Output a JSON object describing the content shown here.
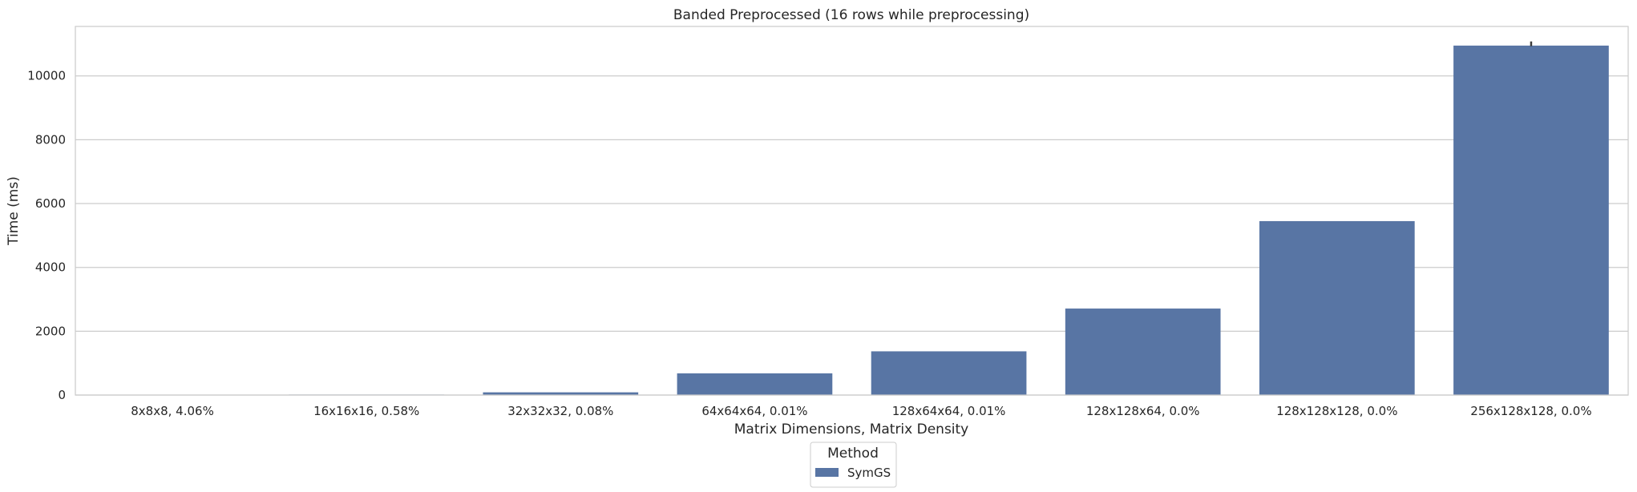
{
  "chart_data": {
    "type": "bar",
    "title": "Banded Preprocessed (16 rows while preprocessing)",
    "xlabel": "Matrix Dimensions, Matrix Density",
    "ylabel": "Time (ms)",
    "categories": [
      "8x8x8, 4.06%",
      "16x16x16, 0.58%",
      "32x32x32, 0.08%",
      "64x64x64, 0.01%",
      "128x64x64, 0.01%",
      "128x128x64, 0.0%",
      "128x128x128, 0.0%",
      "256x128x128, 0.0%"
    ],
    "series": [
      {
        "name": "SymGS",
        "values": [
          2,
          15,
          85,
          680,
          1370,
          2710,
          5450,
          10950
        ],
        "error_bars": [
          [
            2,
            2
          ],
          [
            15,
            15
          ],
          [
            85,
            85
          ],
          [
            680,
            680
          ],
          [
            1370,
            1370
          ],
          [
            2710,
            2710
          ],
          [
            5450,
            5450
          ],
          [
            10930,
            11080
          ]
        ],
        "color": "#5875a4"
      }
    ],
    "ylim": [
      0,
      11550
    ],
    "yticks": [
      0,
      2000,
      4000,
      6000,
      8000,
      10000
    ],
    "ytick_labels": [
      "0",
      "2000",
      "4000",
      "6000",
      "8000",
      "10000"
    ],
    "grid": "horizontal",
    "legend": {
      "title": "Method",
      "placement": "bottom-center, below plot"
    }
  }
}
